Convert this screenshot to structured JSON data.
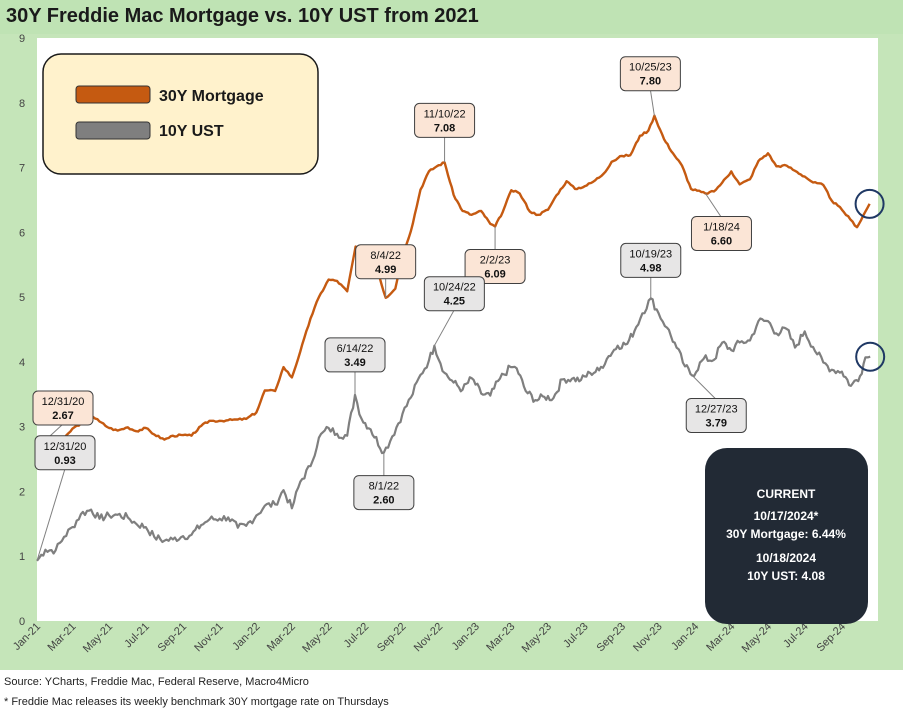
{
  "title": "30Y Freddie Mac Mortgage vs. 10Y UST from 2021",
  "source": "Source: YCharts, Freddie Mac, Federal Reserve, Macro4Micro",
  "footnote": "* Freddie Mac releases its weekly benchmark 30Y mortgage rate on Thursdays",
  "colors": {
    "mortgage": "#c55a11",
    "ust": "#7f7f7f",
    "plot_bg": "#ffffff",
    "frame_bg": "#c5e5b9",
    "legend_bg": "#fff2cc",
    "mortgage_callout_bg": "#fbe5d6",
    "ust_callout_bg": "#e7e6e6",
    "current_bg": "#222a35",
    "circle": "#1f3864"
  },
  "current_box": {
    "heading": "CURRENT",
    "mortgage_date": "10/17/2024*",
    "mortgage_value": "30Y Mortgage: 6.44%",
    "ust_date": "10/18/2024",
    "ust_value": "10Y UST: 4.08"
  },
  "chart_data": {
    "type": "line",
    "title": "30Y Freddie Mac Mortgage vs. 10Y UST from 2021",
    "ylim": [
      0,
      9
    ],
    "yticks": [
      0,
      1,
      2,
      3,
      4,
      5,
      6,
      7,
      8,
      9
    ],
    "xlim": [
      "2021-01-01",
      "2024-10-31"
    ],
    "grid": false,
    "legend": "top-left",
    "xtick_labels": [
      "Jan-21",
      "Mar-21",
      "May-21",
      "Jul-21",
      "Sep-21",
      "Nov-21",
      "Jan-22",
      "Mar-22",
      "May-22",
      "Jul-22",
      "Sep-22",
      "Nov-22",
      "Jan-23",
      "Mar-23",
      "May-23",
      "Jul-23",
      "Sep-23",
      "Nov-23",
      "Jan-24",
      "Mar-24",
      "May-24",
      "Jul-24",
      "Sep-24"
    ],
    "xtick_dates": [
      "2021-01-01",
      "2021-03-01",
      "2021-05-01",
      "2021-07-01",
      "2021-09-01",
      "2021-11-01",
      "2022-01-01",
      "2022-03-01",
      "2022-05-01",
      "2022-07-01",
      "2022-09-01",
      "2022-11-01",
      "2023-01-01",
      "2023-03-01",
      "2023-05-01",
      "2023-07-01",
      "2023-09-01",
      "2023-11-01",
      "2024-01-01",
      "2024-03-01",
      "2024-05-01",
      "2024-07-01",
      "2024-09-01"
    ],
    "series": [
      {
        "name": "30Y Mortgage",
        "x": [
          "2021-01-01",
          "2021-01-15",
          "2021-02-01",
          "2021-02-15",
          "2021-03-01",
          "2021-03-15",
          "2021-04-01",
          "2021-04-15",
          "2021-05-01",
          "2021-05-15",
          "2021-06-01",
          "2021-06-15",
          "2021-07-01",
          "2021-07-15",
          "2021-08-01",
          "2021-08-15",
          "2021-09-01",
          "2021-09-15",
          "2021-10-01",
          "2021-10-15",
          "2021-11-01",
          "2021-11-15",
          "2021-12-01",
          "2021-12-15",
          "2022-01-01",
          "2022-01-15",
          "2022-02-01",
          "2022-02-15",
          "2022-03-01",
          "2022-03-15",
          "2022-04-01",
          "2022-04-15",
          "2022-05-01",
          "2022-05-15",
          "2022-06-01",
          "2022-06-15",
          "2022-06-25",
          "2022-07-10",
          "2022-07-25",
          "2022-08-04",
          "2022-08-20",
          "2022-09-01",
          "2022-09-15",
          "2022-10-01",
          "2022-10-15",
          "2022-10-28",
          "2022-11-10",
          "2022-11-25",
          "2022-12-10",
          "2022-12-25",
          "2023-01-10",
          "2023-01-25",
          "2023-02-02",
          "2023-02-15",
          "2023-03-01",
          "2023-03-15",
          "2023-04-01",
          "2023-04-15",
          "2023-05-01",
          "2023-05-15",
          "2023-06-01",
          "2023-06-15",
          "2023-07-01",
          "2023-07-15",
          "2023-08-01",
          "2023-08-15",
          "2023-09-01",
          "2023-09-15",
          "2023-10-01",
          "2023-10-15",
          "2023-10-25",
          "2023-11-10",
          "2023-11-25",
          "2023-12-10",
          "2023-12-25",
          "2024-01-18",
          "2024-02-01",
          "2024-02-15",
          "2024-03-01",
          "2024-03-15",
          "2024-04-01",
          "2024-04-15",
          "2024-05-01",
          "2024-05-15",
          "2024-06-01",
          "2024-06-15",
          "2024-07-01",
          "2024-07-15",
          "2024-08-01",
          "2024-08-15",
          "2024-09-01",
          "2024-09-15",
          "2024-09-26",
          "2024-10-10",
          "2024-10-17"
        ],
        "values": [
          2.67,
          2.74,
          2.73,
          2.81,
          2.97,
          3.05,
          3.18,
          3.08,
          2.98,
          2.94,
          2.99,
          2.93,
          2.98,
          2.88,
          2.8,
          2.86,
          2.87,
          2.86,
          3.01,
          3.09,
          3.09,
          3.1,
          3.11,
          3.12,
          3.22,
          3.56,
          3.55,
          3.92,
          3.76,
          4.16,
          4.67,
          5.0,
          5.27,
          5.25,
          5.09,
          5.78,
          5.7,
          5.51,
          5.3,
          4.99,
          5.13,
          5.66,
          6.02,
          6.66,
          6.94,
          7.02,
          7.08,
          6.58,
          6.33,
          6.27,
          6.33,
          6.13,
          6.09,
          6.32,
          6.65,
          6.6,
          6.32,
          6.27,
          6.35,
          6.57,
          6.79,
          6.67,
          6.71,
          6.78,
          6.9,
          7.09,
          7.18,
          7.19,
          7.49,
          7.57,
          7.8,
          7.44,
          7.22,
          7.03,
          6.67,
          6.6,
          6.63,
          6.77,
          6.94,
          6.74,
          6.82,
          7.1,
          7.22,
          7.02,
          7.03,
          6.95,
          6.86,
          6.77,
          6.73,
          6.49,
          6.35,
          6.2,
          6.08,
          6.32,
          6.44
        ]
      },
      {
        "name": "10Y UST",
        "x": [
          "2021-01-01",
          "2021-01-15",
          "2021-02-01",
          "2021-02-15",
          "2021-03-01",
          "2021-03-15",
          "2021-04-01",
          "2021-04-15",
          "2021-05-01",
          "2021-05-15",
          "2021-06-01",
          "2021-06-15",
          "2021-07-01",
          "2021-07-15",
          "2021-08-01",
          "2021-08-15",
          "2021-09-01",
          "2021-09-15",
          "2021-10-01",
          "2021-10-15",
          "2021-11-01",
          "2021-11-15",
          "2021-12-01",
          "2021-12-15",
          "2022-01-01",
          "2022-01-15",
          "2022-02-01",
          "2022-02-15",
          "2022-03-01",
          "2022-03-15",
          "2022-04-01",
          "2022-04-15",
          "2022-05-01",
          "2022-05-15",
          "2022-06-01",
          "2022-06-14",
          "2022-06-25",
          "2022-07-10",
          "2022-08-01",
          "2022-08-15",
          "2022-09-01",
          "2022-09-15",
          "2022-10-01",
          "2022-10-15",
          "2022-10-24",
          "2022-11-10",
          "2022-11-25",
          "2022-12-10",
          "2022-12-25",
          "2023-01-10",
          "2023-01-25",
          "2023-02-10",
          "2023-02-28",
          "2023-03-10",
          "2023-03-25",
          "2023-04-10",
          "2023-04-25",
          "2023-05-10",
          "2023-05-25",
          "2023-06-10",
          "2023-06-25",
          "2023-07-10",
          "2023-07-25",
          "2023-08-10",
          "2023-08-25",
          "2023-09-10",
          "2023-09-25",
          "2023-10-05",
          "2023-10-19",
          "2023-11-01",
          "2023-11-15",
          "2023-12-01",
          "2023-12-15",
          "2023-12-27",
          "2024-01-15",
          "2024-02-01",
          "2024-02-15",
          "2024-03-01",
          "2024-03-15",
          "2024-04-01",
          "2024-04-15",
          "2024-05-01",
          "2024-05-15",
          "2024-06-01",
          "2024-06-15",
          "2024-07-01",
          "2024-07-15",
          "2024-08-01",
          "2024-08-15",
          "2024-09-01",
          "2024-09-16",
          "2024-10-01",
          "2024-10-10",
          "2024-10-18"
        ],
        "values": [
          0.93,
          1.1,
          1.09,
          1.3,
          1.45,
          1.65,
          1.72,
          1.58,
          1.63,
          1.64,
          1.6,
          1.5,
          1.45,
          1.3,
          1.24,
          1.26,
          1.31,
          1.33,
          1.48,
          1.57,
          1.58,
          1.6,
          1.44,
          1.47,
          1.63,
          1.78,
          1.8,
          2.02,
          1.74,
          2.15,
          2.39,
          2.83,
          2.98,
          2.89,
          2.86,
          3.49,
          3.12,
          2.96,
          2.6,
          2.85,
          3.2,
          3.45,
          3.8,
          4.02,
          4.25,
          3.83,
          3.68,
          3.57,
          3.75,
          3.51,
          3.48,
          3.74,
          3.92,
          3.9,
          3.55,
          3.41,
          3.46,
          3.44,
          3.73,
          3.74,
          3.72,
          3.83,
          3.87,
          4.09,
          4.25,
          4.28,
          4.54,
          4.75,
          4.98,
          4.75,
          4.53,
          4.22,
          3.93,
          3.79,
          4.05,
          4.03,
          4.3,
          4.18,
          4.3,
          4.33,
          4.63,
          4.63,
          4.44,
          4.51,
          4.22,
          4.47,
          4.23,
          3.99,
          3.88,
          3.85,
          3.63,
          3.78,
          4.07,
          4.08
        ]
      }
    ],
    "annotations": [
      {
        "series": "30Y Mortgage",
        "date": "12/31/20",
        "value": "2.67",
        "x": "2021-01-01",
        "y": 2.67
      },
      {
        "series": "30Y Mortgage",
        "date": "8/4/22",
        "value": "4.99",
        "x": "2022-08-04",
        "y": 4.99
      },
      {
        "series": "30Y Mortgage",
        "date": "11/10/22",
        "value": "7.08",
        "x": "2022-11-10",
        "y": 7.08
      },
      {
        "series": "30Y Mortgage",
        "date": "2/2/23",
        "value": "6.09",
        "x": "2023-02-02",
        "y": 6.09
      },
      {
        "series": "30Y Mortgage",
        "date": "10/25/23",
        "value": "7.80",
        "x": "2023-10-25",
        "y": 7.8
      },
      {
        "series": "30Y Mortgage",
        "date": "1/18/24",
        "value": "6.60",
        "x": "2024-01-18",
        "y": 6.6
      },
      {
        "series": "10Y UST",
        "date": "12/31/20",
        "value": "0.93",
        "x": "2021-01-01",
        "y": 0.93
      },
      {
        "series": "10Y UST",
        "date": "6/14/22",
        "value": "3.49",
        "x": "2022-06-14",
        "y": 3.49
      },
      {
        "series": "10Y UST",
        "date": "8/1/22",
        "value": "2.60",
        "x": "2022-08-01",
        "y": 2.6
      },
      {
        "series": "10Y UST",
        "date": "10/24/22",
        "value": "4.25",
        "x": "2022-10-24",
        "y": 4.25
      },
      {
        "series": "10Y UST",
        "date": "10/19/23",
        "value": "4.98",
        "x": "2023-10-19",
        "y": 4.98
      },
      {
        "series": "10Y UST",
        "date": "12/27/23",
        "value": "3.79",
        "x": "2023-12-27",
        "y": 3.79
      }
    ]
  }
}
